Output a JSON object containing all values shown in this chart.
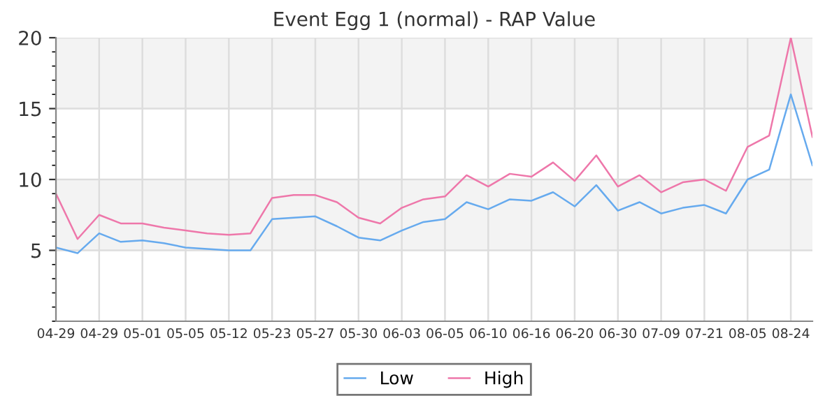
{
  "chart_data": {
    "type": "line",
    "title": "Event Egg 1 (normal) - RAP Value",
    "categories": [
      "04-29",
      null,
      "04-29",
      null,
      "05-01",
      null,
      "05-05",
      null,
      "05-12",
      null,
      "05-23",
      null,
      "05-27",
      null,
      "05-30",
      null,
      "06-03",
      null,
      "06-05",
      null,
      "06-10",
      null,
      "06-16",
      null,
      "06-20",
      null,
      "06-30",
      null,
      "07-09",
      null,
      "07-21",
      null,
      "08-05",
      null,
      "08-24",
      null
    ],
    "series": [
      {
        "name": "Low",
        "color": "#66aaee",
        "values": [
          5.2,
          4.8,
          6.2,
          5.6,
          5.7,
          5.5,
          5.2,
          5.1,
          5.0,
          5.0,
          7.2,
          7.3,
          7.4,
          6.7,
          5.9,
          5.7,
          6.4,
          7.0,
          7.2,
          8.4,
          7.9,
          8.6,
          8.5,
          9.1,
          8.1,
          9.6,
          7.8,
          8.4,
          7.6,
          8.0,
          8.2,
          7.6,
          10.0,
          10.7,
          16.0,
          11.0
        ]
      },
      {
        "name": "High",
        "color": "#ee77aa",
        "values": [
          9.0,
          5.8,
          7.5,
          6.9,
          6.9,
          6.6,
          6.4,
          6.2,
          6.1,
          6.2,
          8.7,
          8.9,
          8.9,
          8.4,
          7.3,
          6.9,
          8.0,
          8.6,
          8.8,
          10.3,
          9.5,
          10.4,
          10.2,
          11.2,
          9.9,
          11.7,
          9.5,
          10.3,
          9.1,
          9.8,
          10.0,
          9.2,
          12.3,
          13.1,
          20.0,
          13.0
        ]
      }
    ],
    "ylim": [
      0,
      20
    ],
    "yticks": [
      5,
      10,
      15,
      20
    ],
    "bands": [
      {
        "axis": "y",
        "from": 5,
        "to": 10,
        "color": "#f3f3f3"
      },
      {
        "axis": "y",
        "from": 15,
        "to": 20,
        "color": "#f3f3f3"
      }
    ],
    "grid": true,
    "legend": "bottom",
    "marker": "none",
    "line_style": "solid"
  }
}
